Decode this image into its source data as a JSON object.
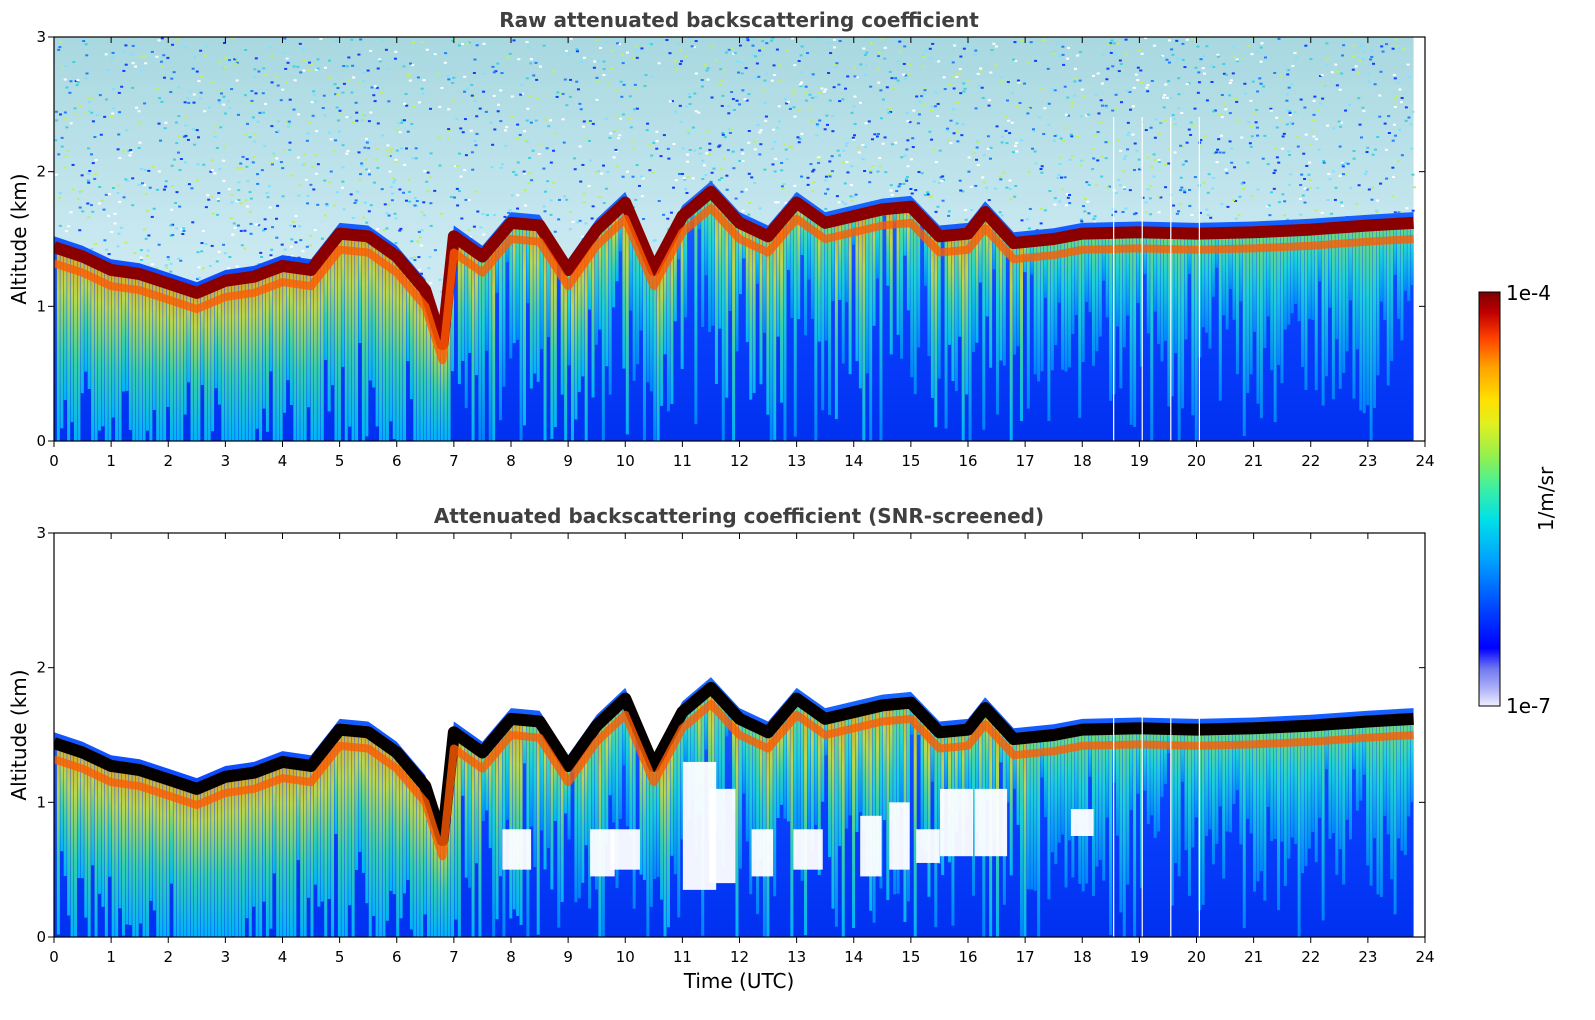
{
  "chart_data": [
    {
      "type": "heatmap",
      "title": "Raw attenuated backscattering coefficient",
      "xlabel": "",
      "ylabel": "Altitude (km)",
      "xlim": [
        0,
        24
      ],
      "ylim": [
        0,
        3
      ],
      "x_ticks": [
        "0",
        "1",
        "2",
        "3",
        "4",
        "5",
        "6",
        "7",
        "8",
        "9",
        "10",
        "11",
        "12",
        "13",
        "14",
        "15",
        "16",
        "17",
        "18",
        "19",
        "20",
        "21",
        "22",
        "23",
        "24"
      ],
      "y_ticks": [
        "0",
        "1",
        "2",
        "3"
      ],
      "layer_top_km": [
        [
          0,
          1.52
        ],
        [
          0.5,
          1.45
        ],
        [
          1,
          1.35
        ],
        [
          1.5,
          1.32
        ],
        [
          2,
          1.25
        ],
        [
          2.5,
          1.18
        ],
        [
          3,
          1.27
        ],
        [
          3.5,
          1.3
        ],
        [
          4,
          1.38
        ],
        [
          4.5,
          1.35
        ],
        [
          5,
          1.62
        ],
        [
          5.5,
          1.6
        ],
        [
          6,
          1.45
        ],
        [
          6.5,
          1.2
        ],
        [
          6.8,
          0.8
        ],
        [
          7,
          1.6
        ],
        [
          7.5,
          1.45
        ],
        [
          8,
          1.7
        ],
        [
          8.5,
          1.68
        ],
        [
          9,
          1.35
        ],
        [
          9.5,
          1.65
        ],
        [
          10,
          1.85
        ],
        [
          10.5,
          1.35
        ],
        [
          11,
          1.75
        ],
        [
          11.5,
          1.93
        ],
        [
          12,
          1.7
        ],
        [
          12.5,
          1.6
        ],
        [
          13,
          1.85
        ],
        [
          13.5,
          1.7
        ],
        [
          14,
          1.75
        ],
        [
          14.5,
          1.8
        ],
        [
          15,
          1.82
        ],
        [
          15.5,
          1.6
        ],
        [
          16,
          1.62
        ],
        [
          16.3,
          1.78
        ],
        [
          16.8,
          1.55
        ],
        [
          17.5,
          1.58
        ],
        [
          18,
          1.62
        ],
        [
          19,
          1.63
        ],
        [
          20,
          1.62
        ],
        [
          21,
          1.63
        ],
        [
          22,
          1.65
        ],
        [
          23,
          1.68
        ],
        [
          23.8,
          1.7
        ]
      ],
      "gap_times_utc": [
        18.55,
        19.05,
        19.55,
        20.05
      ]
    },
    {
      "type": "heatmap",
      "title": "Attenuated backscattering coefficient (SNR-screened)",
      "xlabel": "Time (UTC)",
      "ylabel": "Altitude (km)",
      "xlim": [
        0,
        24
      ],
      "ylim": [
        0,
        3
      ],
      "x_ticks": [
        "0",
        "1",
        "2",
        "3",
        "4",
        "5",
        "6",
        "7",
        "8",
        "9",
        "10",
        "11",
        "12",
        "13",
        "14",
        "15",
        "16",
        "17",
        "18",
        "19",
        "20",
        "21",
        "22",
        "23",
        "24"
      ],
      "y_ticks": [
        "0",
        "1",
        "2",
        "3"
      ],
      "layer_top_km": [
        [
          0,
          1.52
        ],
        [
          0.5,
          1.45
        ],
        [
          1,
          1.35
        ],
        [
          1.5,
          1.32
        ],
        [
          2,
          1.25
        ],
        [
          2.5,
          1.18
        ],
        [
          3,
          1.27
        ],
        [
          3.5,
          1.3
        ],
        [
          4,
          1.38
        ],
        [
          4.5,
          1.35
        ],
        [
          5,
          1.62
        ],
        [
          5.5,
          1.6
        ],
        [
          6,
          1.45
        ],
        [
          6.5,
          1.2
        ],
        [
          6.8,
          0.8
        ],
        [
          7,
          1.6
        ],
        [
          7.5,
          1.45
        ],
        [
          8,
          1.7
        ],
        [
          8.5,
          1.68
        ],
        [
          9,
          1.35
        ],
        [
          9.5,
          1.65
        ],
        [
          10,
          1.85
        ],
        [
          10.5,
          1.35
        ],
        [
          11,
          1.75
        ],
        [
          11.5,
          1.93
        ],
        [
          12,
          1.7
        ],
        [
          12.5,
          1.6
        ],
        [
          13,
          1.85
        ],
        [
          13.5,
          1.7
        ],
        [
          14,
          1.75
        ],
        [
          14.5,
          1.8
        ],
        [
          15,
          1.82
        ],
        [
          15.5,
          1.6
        ],
        [
          16,
          1.62
        ],
        [
          16.3,
          1.78
        ],
        [
          16.8,
          1.55
        ],
        [
          17.5,
          1.58
        ],
        [
          18,
          1.62
        ],
        [
          19,
          1.63
        ],
        [
          20,
          1.62
        ],
        [
          21,
          1.63
        ],
        [
          22,
          1.65
        ],
        [
          23,
          1.68
        ],
        [
          23.8,
          1.7
        ]
      ],
      "gap_times_utc": [
        18.55,
        19.05,
        19.55,
        20.05
      ]
    }
  ],
  "colorbar": {
    "label": "1/m/sr",
    "max_label": "1e-4",
    "min_label": "1e-7",
    "colors": [
      "#f0f0ff",
      "#b0b4f8",
      "#7078f0",
      "#0000ff",
      "#0040ff",
      "#0080ff",
      "#00c0ff",
      "#00e8e0",
      "#40f0a0",
      "#90f050",
      "#d0f020",
      "#ffe000",
      "#ffa000",
      "#ff5000",
      "#e01000",
      "#a00000",
      "#800000"
    ]
  }
}
